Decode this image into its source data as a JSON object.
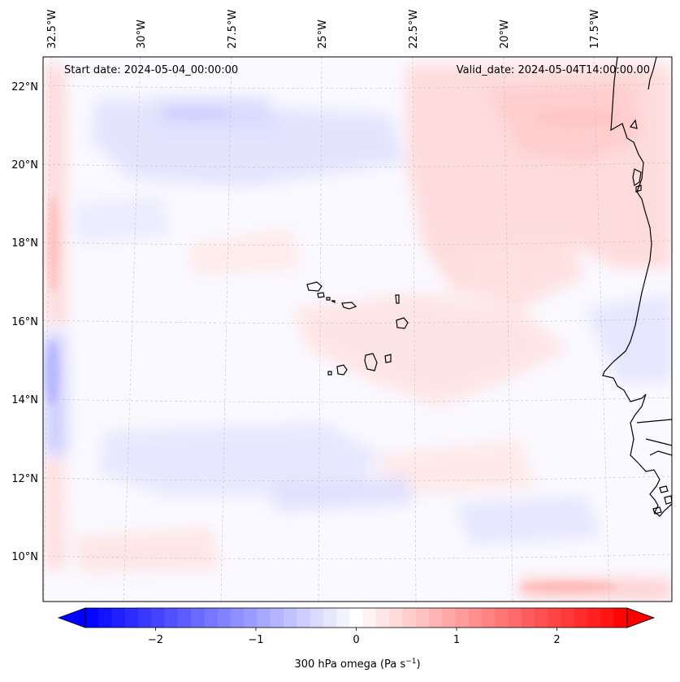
{
  "map": {
    "start_date_label": "Start date: 2024-05-04_00:00:00",
    "valid_date_label": "Valid_date: 2024-05-04T14:00:00.00",
    "lon_labels": [
      "32.5°W",
      "30°W",
      "27.5°W",
      "25°W",
      "22.5°W",
      "20°W",
      "17.5°W"
    ],
    "lat_labels": [
      "22°N",
      "20°N",
      "18°N",
      "16°N",
      "14°N",
      "12°N",
      "10°N"
    ]
  },
  "colorbar": {
    "label": "300 hPa omega (Pa s",
    "label_exponent": "−1",
    "label_close": ")",
    "ticks": [
      "−2",
      "−1",
      "0",
      "1",
      "2"
    ],
    "tick_values": [
      -2,
      -1,
      0,
      1,
      2
    ],
    "range": [
      -2.7,
      2.7
    ],
    "levels": 41,
    "colormap": "bwr",
    "min_color": "#0000ff",
    "mid_color": "#ffffff",
    "max_color": "#ff0000"
  },
  "colors": {
    "coast": "#000000",
    "grid": "#c8c8c8"
  }
}
